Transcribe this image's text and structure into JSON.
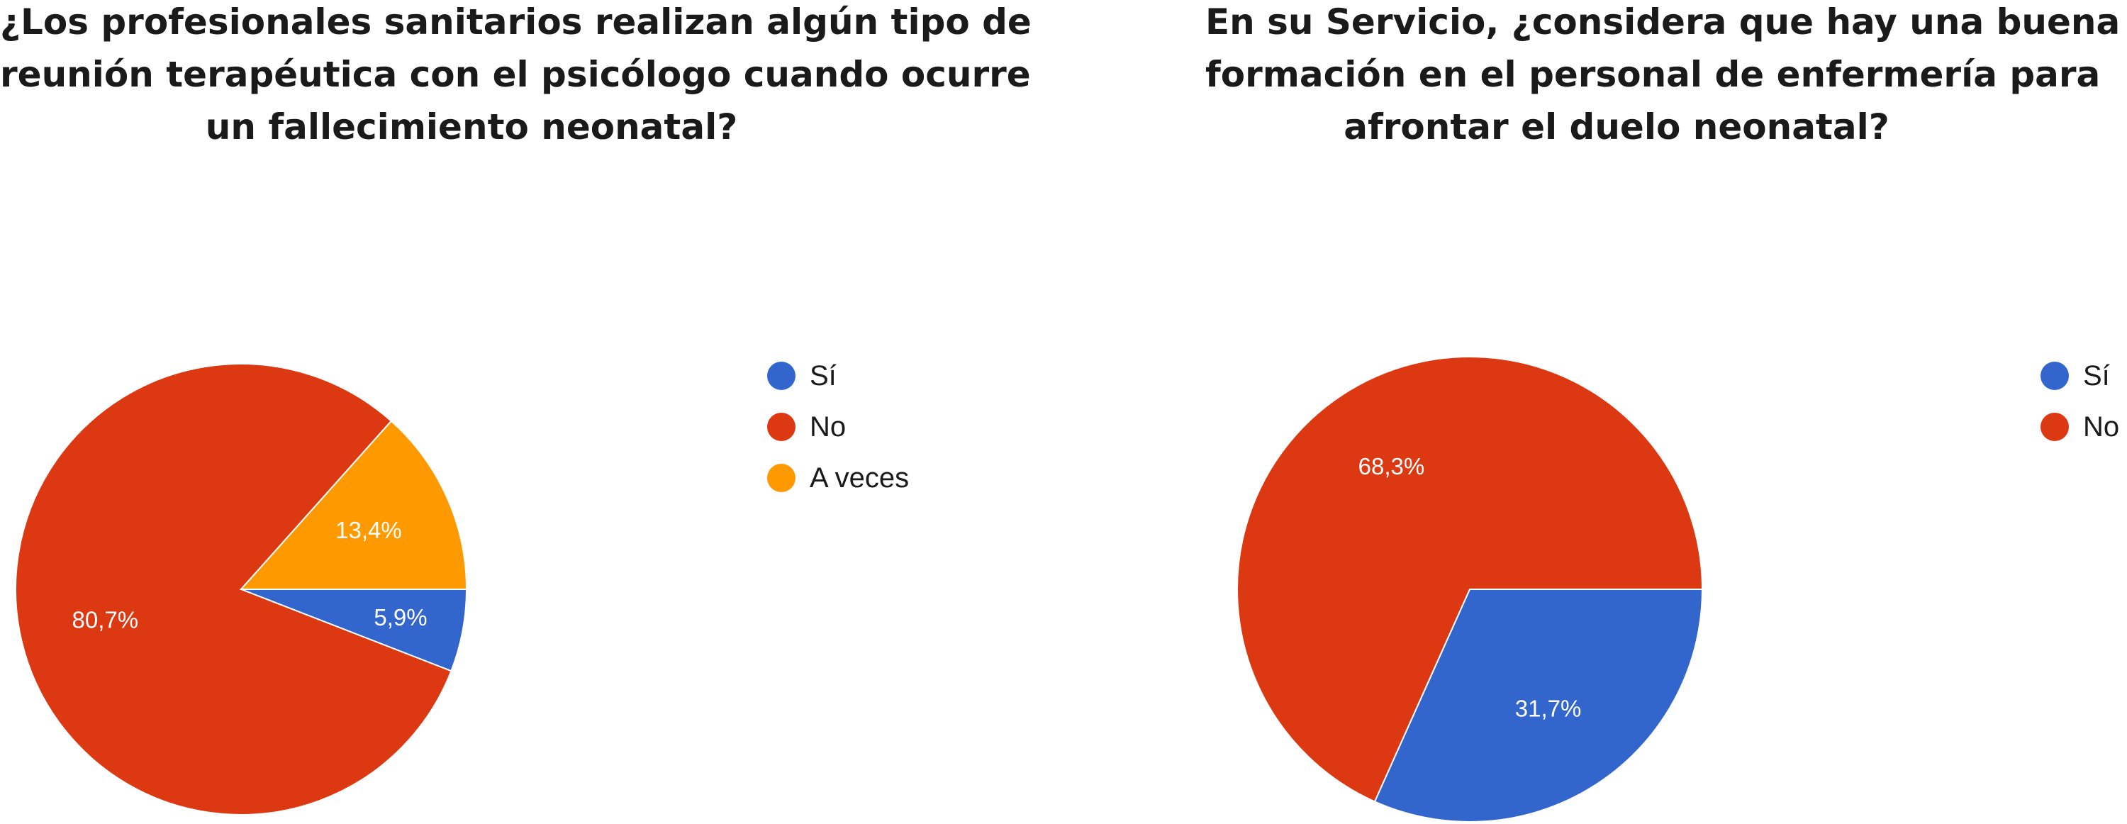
{
  "chart_data": [
    {
      "type": "pie",
      "title": "¿Los profesionales sanitarios realizan algún tipo de reunión terapéutica con el psicólogo cuando ocurre un fallecimiento neonatal?",
      "title_lines": [
        "¿Los profesionales sanitarios realizan algún tipo de",
        "reunión terapéutica con el psicólogo cuando ocurre",
        "un fallecimiento neonatal?"
      ],
      "legend_position": "right",
      "categories": [
        "Sí",
        "No",
        "A veces"
      ],
      "values": [
        5.9,
        80.7,
        13.4
      ],
      "labels": [
        "5,9%",
        "80,7%",
        "13,4%"
      ],
      "colors": [
        "#3366cc",
        "#dc3912",
        "#ff9900"
      ]
    },
    {
      "type": "pie",
      "title": "En su Servicio, ¿considera que hay una buena formación en el personal de enfermería para afrontar el duelo neonatal?",
      "title_lines": [
        "En su Servicio, ¿considera que hay una buena",
        "formación en el personal de enfermería para",
        "afrontar el duelo neonatal?"
      ],
      "legend_position": "right",
      "categories": [
        "Sí",
        "No"
      ],
      "values": [
        31.7,
        68.3
      ],
      "labels": [
        "31,7%",
        "68,3%"
      ],
      "colors": [
        "#3366cc",
        "#dc3912"
      ]
    }
  ]
}
